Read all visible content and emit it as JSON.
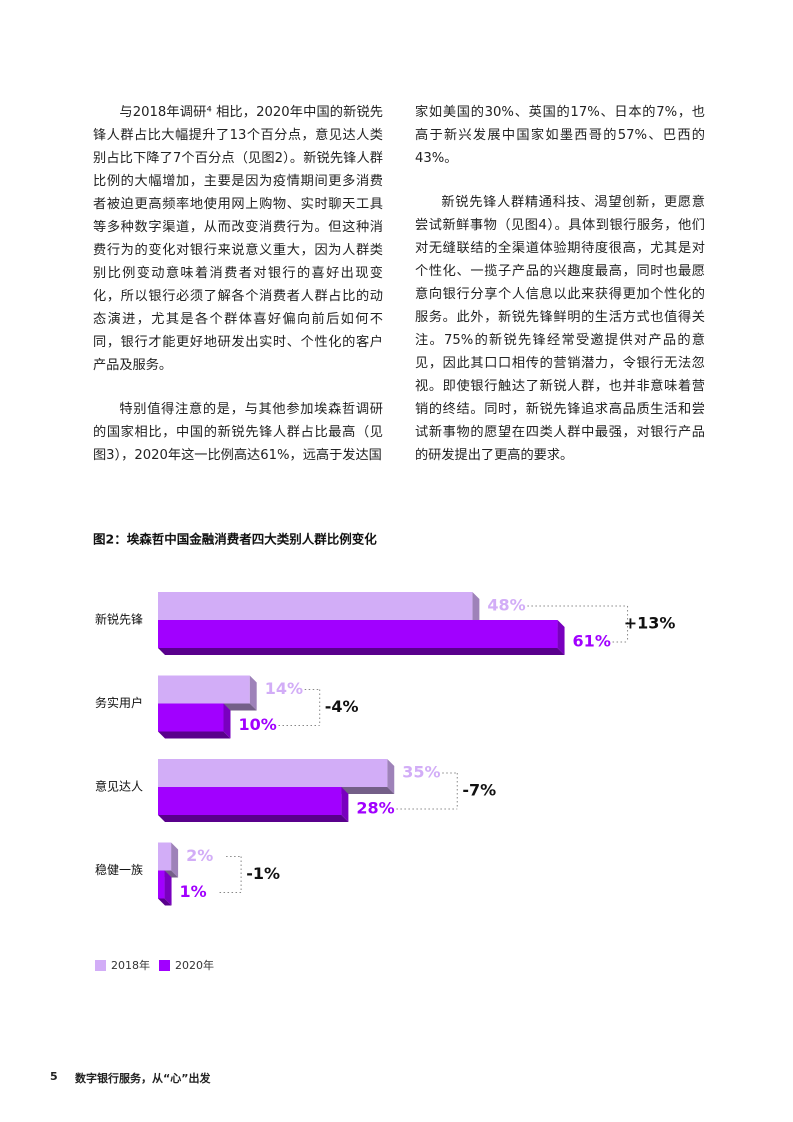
{
  "body": {
    "left": [
      "与2018年调研⁴ 相比，2020年中国的新锐先锋人群占比大幅提升了13个百分点，意见达人类别占比下降了7个百分点（见图2）。新锐先锋人群比例的大幅增加，主要是因为疫情期间更多消费者被迫更高频率地使用网上购物、实时聊天工具等多种数字渠道，从而改变消费行为。但这种消费行为的变化对银行来说意义重大，因为人群类别比例变动意味着消费者对银行的喜好出现变化，所以银行必须了解各个消费者人群占比的动态演进，尤其是各个群体喜好偏向前后如何不同，银行才能更好地研发出实时、个性化的客户产品及服务。",
      "特别值得注意的是，与其他参加埃森哲调研的国家相比，中国的新锐先锋人群占比最高（见图3），2020年这一比例高达61%，远高于发达国"
    ],
    "right": [
      "家如美国的30%、英国的17%、日本的7%，也高于新兴发展中国家如墨西哥的57%、巴西的43%。",
      "新锐先锋人群精通科技、渴望创新，更愿意尝试新鲜事物（见图4）。具体到银行服务，他们对无缝联结的全渠道体验期待度很高，尤其是对个性化、一揽子产品的兴趣度最高，同时也最愿意向银行分享个人信息以此来获得更加个性化的服务。此外，新锐先锋鲜明的生活方式也值得关注。75%的新锐先锋经常受邀提供对产品的意见，因此其口口相传的营销潜力，令银行无法忽视。即使银行触达了新锐人群，也并非意味着营销的终结。同时，新锐先锋追求高品质生活和尝试新事物的愿望在四类人群中最强，对银行产品的研发提出了更高的要求。"
    ]
  },
  "chart_data": {
    "type": "bar",
    "title": "图2：埃森哲中国金融消费者四大类别人群比例变化",
    "categories": [
      "新锐先锋",
      "务实用户",
      "意见达人",
      "稳健一族"
    ],
    "series": [
      {
        "name": "2018年",
        "color": "#d2adf7",
        "values": [
          48,
          14,
          35,
          2
        ],
        "value_labels": [
          "48%",
          "14%",
          "35%",
          "2%"
        ]
      },
      {
        "name": "2020年",
        "color": "#a100ff",
        "values": [
          61,
          10,
          28,
          1
        ],
        "value_labels": [
          "61%",
          "10%",
          "28%",
          "1%"
        ]
      }
    ],
    "change_labels": [
      "+13%",
      "-4%",
      "-7%",
      "-1%"
    ]
  },
  "footer": {
    "page": "5",
    "title": "数字银行服务，从“心”出发"
  }
}
